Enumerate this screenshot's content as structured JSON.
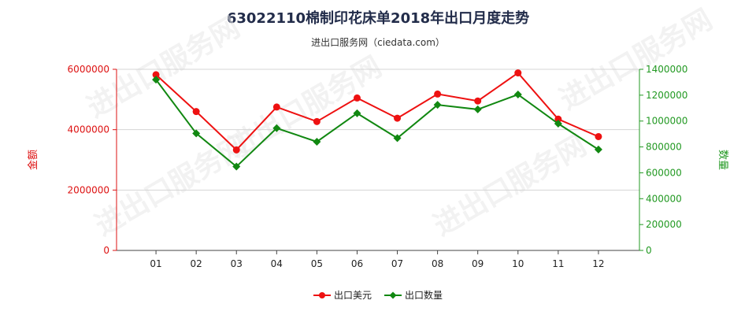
{
  "chart_data": {
    "type": "line",
    "title": "63022110棉制印花床单2018年出口月度走势",
    "subtitle": "进出口服务网（ciedata.com）",
    "categories": [
      "01",
      "02",
      "03",
      "04",
      "05",
      "06",
      "07",
      "08",
      "09",
      "10",
      "11",
      "12"
    ],
    "y_left": {
      "label": "金额",
      "range": [
        0,
        6000000
      ],
      "ticks": [
        "0",
        "2000000",
        "4000000",
        "6000000"
      ],
      "color": "#dd1111"
    },
    "y_right": {
      "label": "数量",
      "range": [
        0,
        1400000
      ],
      "ticks": [
        "0",
        "200000",
        "400000",
        "600000",
        "800000",
        "1000000",
        "1200000",
        "1400000"
      ],
      "color": "#229922"
    },
    "series": [
      {
        "name": "出口美元",
        "axis": "left",
        "color": "#ee1111",
        "values": [
          5820000,
          4600000,
          3330000,
          4750000,
          4270000,
          5050000,
          4380000,
          5180000,
          4950000,
          5880000,
          4350000,
          3770000
        ]
      },
      {
        "name": "出口数量",
        "axis": "right",
        "color": "#118811",
        "values": [
          1320000,
          905000,
          648000,
          945000,
          840000,
          1060000,
          868000,
          1125000,
          1090000,
          1205000,
          980000,
          780000
        ]
      }
    ],
    "grid": "horizontal",
    "legend": "bottom-center"
  },
  "watermark": "进出口服务网"
}
